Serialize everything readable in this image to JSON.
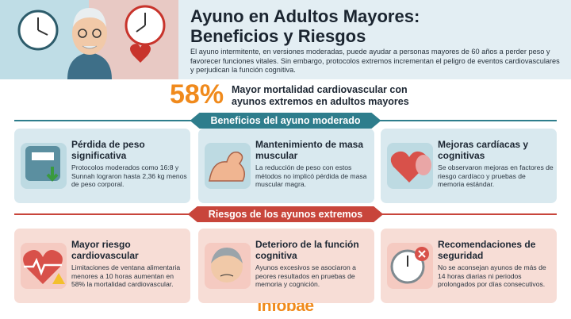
{
  "header": {
    "title_lines": [
      "Ayuno en Adultos Mayores:",
      "Beneficios y Riesgos"
    ],
    "intro": "El ayuno intermitente, en versiones moderadas, puede ayudar a personas mayores de 60 años a perder peso y favorecer funciones vitales. Sin embargo, protocolos extremos incrementan el peligro de eventos cardiovasculares y perjudican la función cognitiva."
  },
  "highlight": {
    "stat": "58%",
    "text": "Mayor mortalidad cardiovascular con ayunos extremos en adultos mayores"
  },
  "sections": [
    {
      "title": "Beneficios del ayuno moderado",
      "cards": [
        {
          "title": "Pérdida de peso significativa",
          "text": "Protocolos moderados como 16:8 y Sunnah lograron hasta 2,36 kg menos de peso corporal."
        },
        {
          "title": "Mantenimiento de masa muscular",
          "text": "La reducción de peso con estos métodos no implicó pérdida de masa muscular magra."
        },
        {
          "title": "Mejoras cardíacas y cognitivas",
          "text": "Se observaron mejoras en factores de riesgo cardíaco y pruebas de memoria estándar."
        }
      ]
    },
    {
      "title": "Riesgos de los ayunos extremos",
      "cards": [
        {
          "title": "Mayor riesgo cardiovascular",
          "text": "Limitaciones de ventana alimentaria menores a 10 horas aumentan en 58% la mortalidad cardiovascular."
        },
        {
          "title": "Deterioro de la función cognitiva",
          "text": "Ayunos excesivos se asociaron a peores resultados en pruebas de memoria y cognición."
        },
        {
          "title": "Recomendaciones de seguridad",
          "text": "No se aconsejan ayunos de más de 14 horas diarias ni periodos prolongados por días consecutivos."
        }
      ]
    }
  ],
  "footer": {
    "brand": "infobae"
  }
}
